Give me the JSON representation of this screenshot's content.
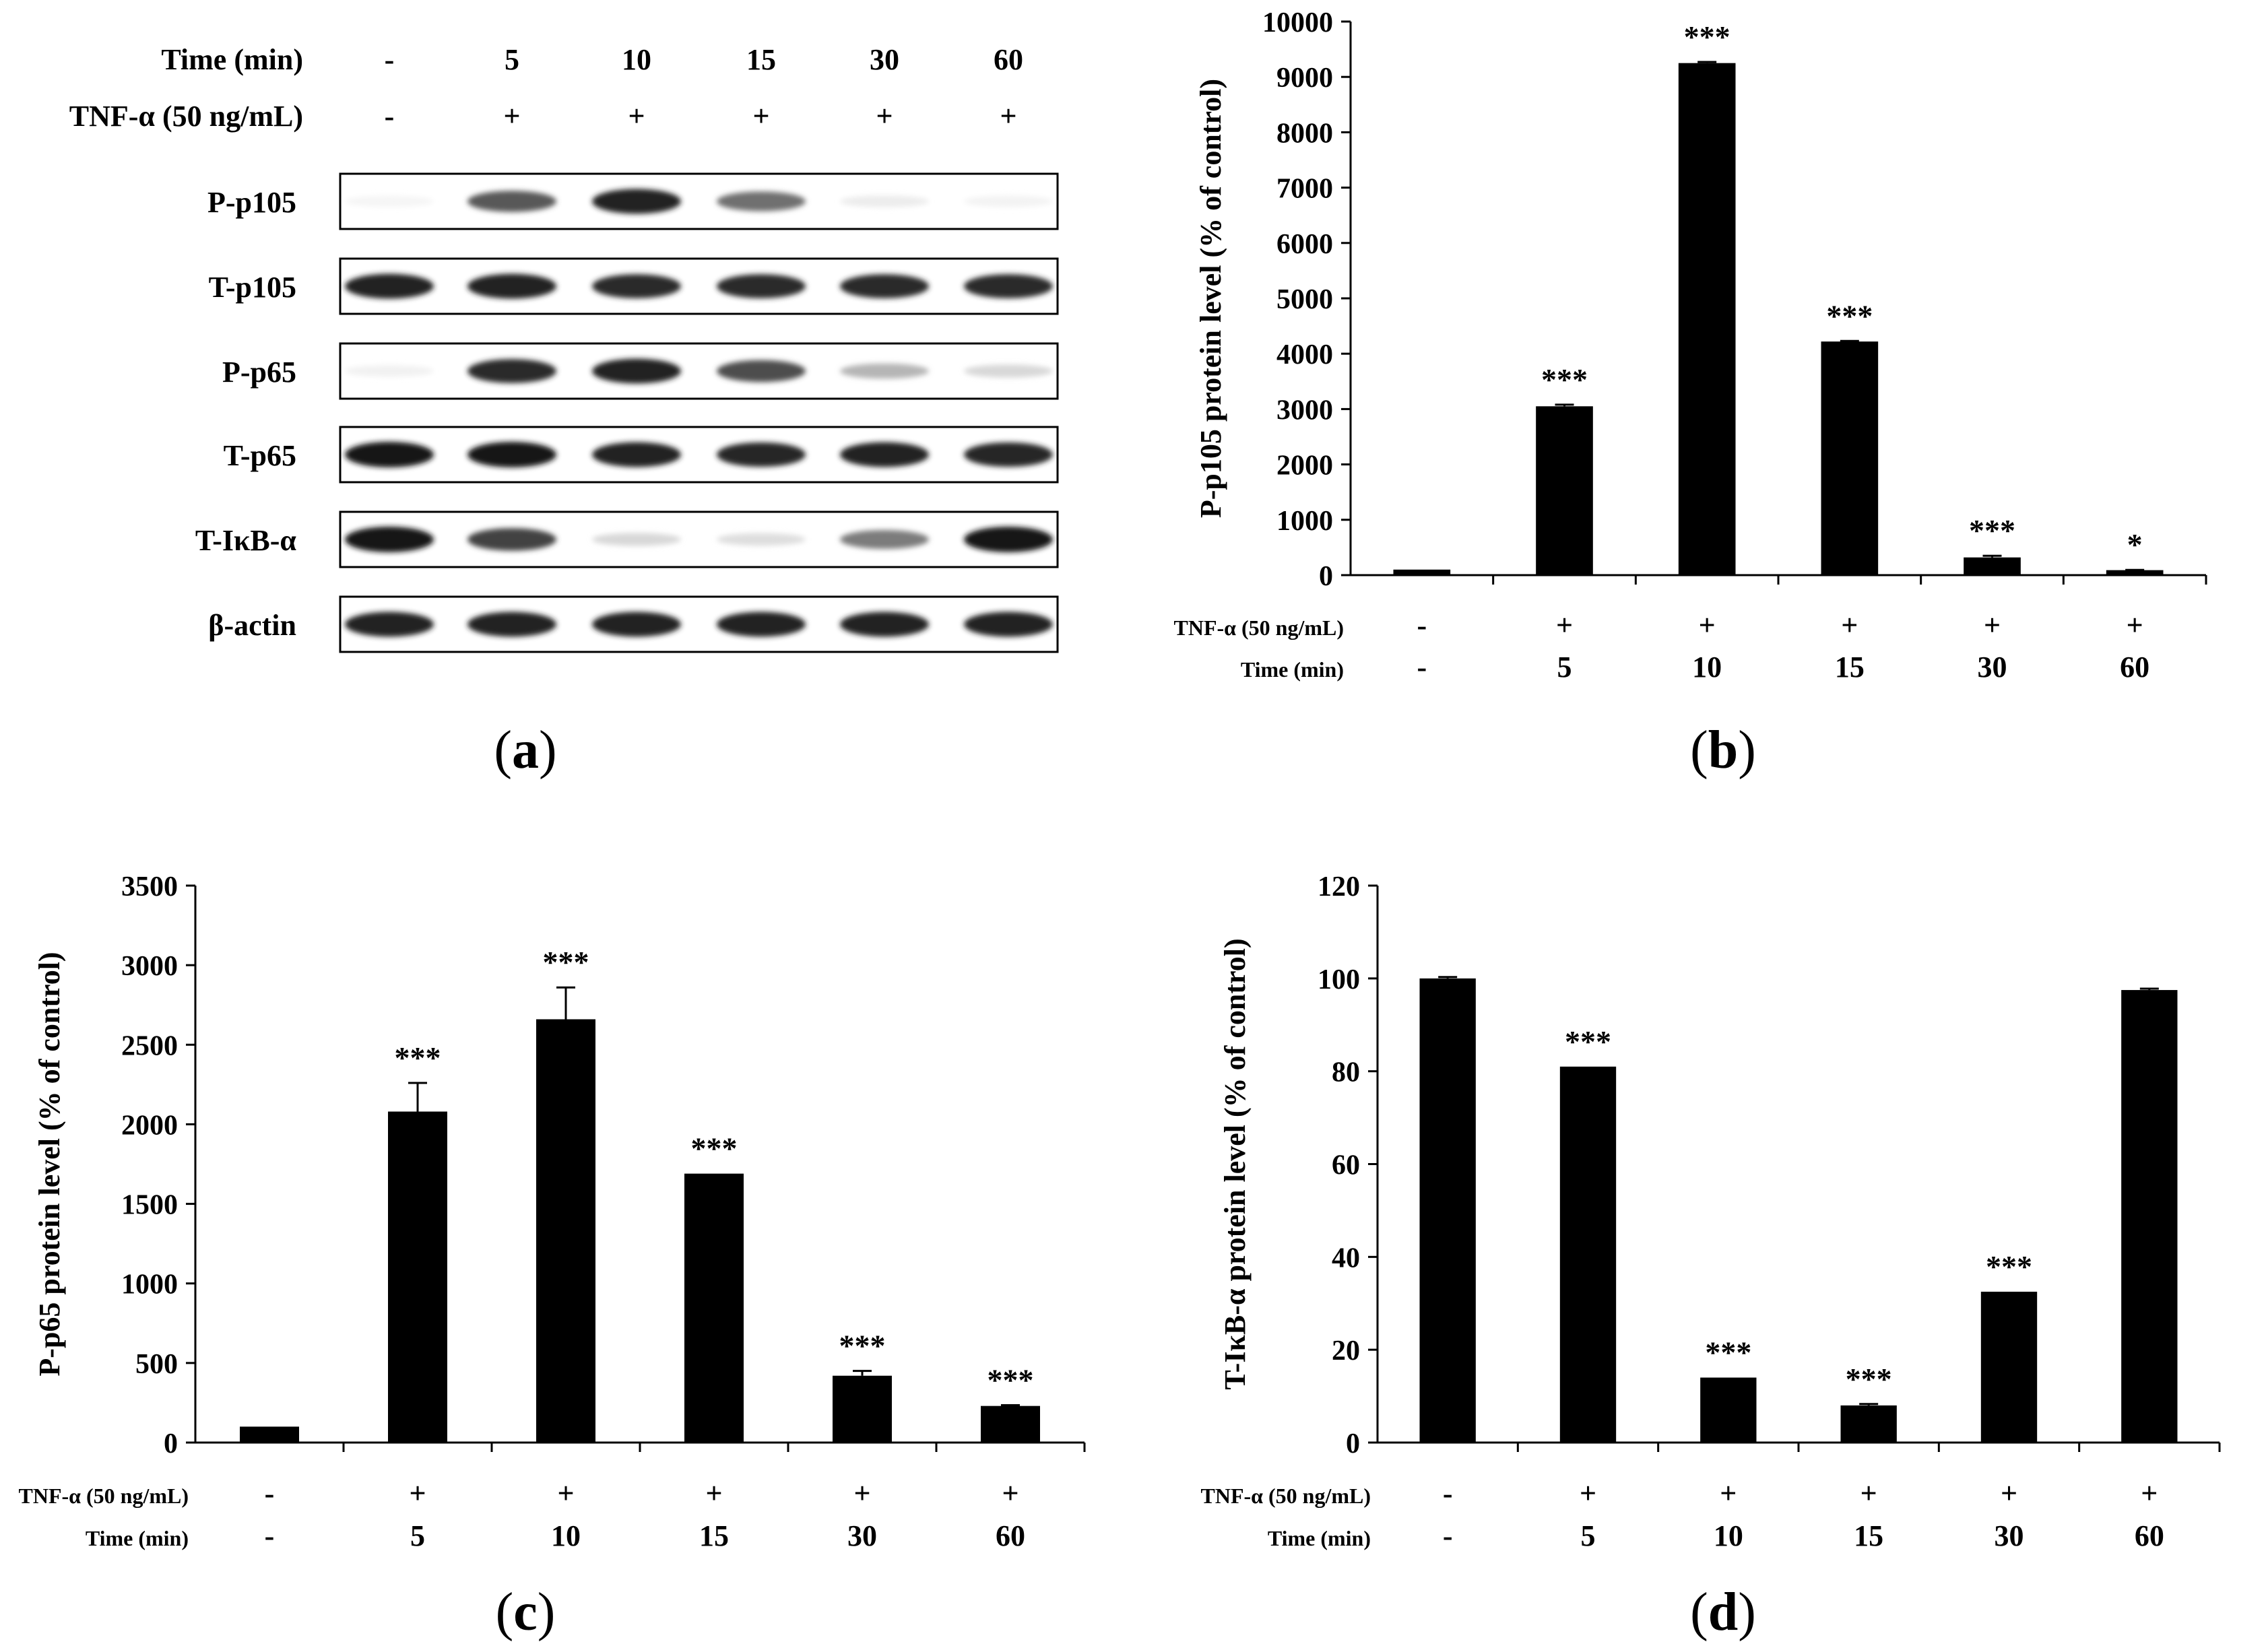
{
  "panels": {
    "a": {
      "caption_letter": "a",
      "header": {
        "time_label": "Time  (min)",
        "tnf_label": "TNF-α (50 ng/mL)",
        "times": [
          "-",
          "5",
          "10",
          "15",
          "30",
          "60"
        ],
        "tnf": [
          "-",
          "+",
          "+",
          "+",
          "+",
          "+"
        ]
      },
      "blots": [
        {
          "label": "P-p105",
          "intensity": [
            0.02,
            0.7,
            0.95,
            0.6,
            0.06,
            0.03
          ]
        },
        {
          "label": "T-p105",
          "intensity": [
            0.95,
            0.95,
            0.9,
            0.9,
            0.9,
            0.9
          ]
        },
        {
          "label": "P-p65",
          "intensity": [
            0.04,
            0.9,
            0.95,
            0.75,
            0.3,
            0.15
          ]
        },
        {
          "label": "T-p65",
          "intensity": [
            1.0,
            1.0,
            0.95,
            0.92,
            0.95,
            0.92
          ]
        },
        {
          "label": "T-IκB-α",
          "intensity": [
            1.0,
            0.8,
            0.15,
            0.12,
            0.55,
            1.0
          ]
        },
        {
          "label": "β-actin",
          "intensity": [
            0.95,
            0.95,
            0.95,
            0.95,
            0.95,
            0.95
          ]
        }
      ]
    }
  },
  "chart_data": [
    {
      "panel": "b",
      "type": "bar",
      "ylabel": "P-p105 protein level (% of control)",
      "categories": [
        "-",
        "5",
        "10",
        "15",
        "30",
        "60"
      ],
      "tnf": [
        "-",
        "+",
        "+",
        "+",
        "+",
        "+"
      ],
      "tnf_label": "TNF-α (50 ng/mL)",
      "time_label": "Time (min)",
      "values": [
        100,
        3050,
        9250,
        4220,
        320,
        90
      ],
      "errors": [
        0,
        30,
        20,
        10,
        30,
        5
      ],
      "significance": [
        "",
        "***",
        "***",
        "***",
        "***",
        "*"
      ],
      "ylim": [
        0,
        10000
      ],
      "yticks": [
        0,
        1000,
        2000,
        3000,
        4000,
        5000,
        6000,
        7000,
        8000,
        9000,
        10000
      ]
    },
    {
      "panel": "c",
      "type": "bar",
      "ylabel": "P-p65 protein level (% of control)",
      "categories": [
        "-",
        "5",
        "10",
        "15",
        "30",
        "60"
      ],
      "tnf": [
        "-",
        "+",
        "+",
        "+",
        "+",
        "+"
      ],
      "tnf_label": "TNF-α (50 ng/mL)",
      "time_label": "Time (min)",
      "values": [
        100,
        2080,
        2660,
        1690,
        420,
        230
      ],
      "errors": [
        0,
        180,
        200,
        0,
        30,
        5
      ],
      "significance": [
        "",
        "***",
        "***",
        "***",
        "***",
        "***"
      ],
      "ylim": [
        0,
        3500
      ],
      "yticks": [
        0,
        500,
        1000,
        1500,
        2000,
        2500,
        3000,
        3500
      ]
    },
    {
      "panel": "d",
      "type": "bar",
      "ylabel": "T-IκB-α protein level (% of control)",
      "categories": [
        "-",
        "5",
        "10",
        "15",
        "30",
        "60"
      ],
      "tnf": [
        "-",
        "+",
        "+",
        "+",
        "+",
        "+"
      ],
      "tnf_label": "TNF-α (50 ng/mL)",
      "time_label": "Time (min)",
      "values": [
        100,
        81,
        14,
        8,
        32.5,
        97.5
      ],
      "errors": [
        0.3,
        0,
        0,
        0.3,
        0,
        0.3
      ],
      "significance": [
        "",
        "***",
        "***",
        "***",
        "***",
        ""
      ],
      "ylim": [
        0,
        120
      ],
      "yticks": [
        0,
        20,
        40,
        60,
        80,
        100,
        120
      ]
    }
  ]
}
